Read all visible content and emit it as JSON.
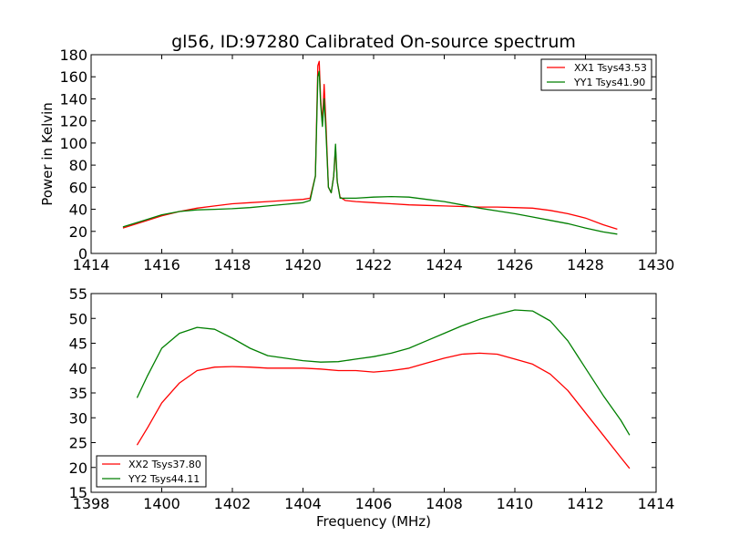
{
  "chart_data": [
    {
      "type": "line",
      "title": "gl56, ID:97280 Calibrated On-source spectrum",
      "xlabel": "",
      "ylabel": "Power in Kelvin",
      "xlim": [
        1414,
        1430
      ],
      "ylim": [
        0,
        180
      ],
      "xticks": [
        "1414",
        "1416",
        "1418",
        "1420",
        "1422",
        "1424",
        "1426",
        "1428",
        "1430"
      ],
      "yticks": [
        "0",
        "20",
        "40",
        "60",
        "80",
        "100",
        "120",
        "140",
        "160",
        "180"
      ],
      "legend_position": "top-right",
      "series": [
        {
          "name": "XX1 Tsys43.53",
          "color": "#ff0000",
          "x": [
            1414.9,
            1415.5,
            1416,
            1416.5,
            1417,
            1417.5,
            1418,
            1418.5,
            1419,
            1419.5,
            1420,
            1420.2,
            1420.35,
            1420.42,
            1420.46,
            1420.5,
            1420.55,
            1420.6,
            1420.65,
            1420.72,
            1420.8,
            1420.87,
            1420.92,
            1420.97,
            1421.05,
            1421.2,
            1421.5,
            1422,
            1422.5,
            1423,
            1423.5,
            1424,
            1424.5,
            1425,
            1425.5,
            1426,
            1426.5,
            1427,
            1427.5,
            1428,
            1428.5,
            1428.9
          ],
          "values": [
            23,
            29,
            34,
            38,
            41,
            43,
            45,
            46,
            47,
            48,
            49,
            50,
            70,
            170,
            174,
            140,
            118,
            153,
            118,
            60,
            55,
            70,
            95,
            65,
            51,
            48,
            47,
            46,
            45,
            44,
            43.5,
            43,
            42.5,
            42,
            42,
            41.5,
            41,
            39,
            36,
            32,
            26,
            22
          ]
        },
        {
          "name": "YY1 Tsys41.90",
          "color": "#007f00",
          "x": [
            1414.9,
            1415.5,
            1416,
            1416.5,
            1417,
            1417.5,
            1418,
            1418.5,
            1419,
            1419.5,
            1420,
            1420.2,
            1420.35,
            1420.42,
            1420.46,
            1420.5,
            1420.55,
            1420.6,
            1420.65,
            1420.72,
            1420.8,
            1420.87,
            1420.92,
            1420.97,
            1421.05,
            1421.2,
            1421.5,
            1422,
            1422.5,
            1423,
            1423.5,
            1424,
            1424.5,
            1425,
            1425.5,
            1426,
            1426.5,
            1427,
            1427.5,
            1428,
            1428.5,
            1428.9
          ],
          "values": [
            24,
            30,
            35,
            38,
            39.5,
            40,
            40.5,
            41.5,
            43,
            44.5,
            46,
            48,
            70,
            160,
            165,
            135,
            115,
            140,
            110,
            60,
            55,
            70,
            99,
            65,
            50,
            50,
            50,
            51,
            51.5,
            51,
            49,
            47,
            44,
            41,
            38.5,
            36,
            33,
            30,
            27,
            23,
            19.5,
            17.5
          ]
        }
      ]
    },
    {
      "type": "line",
      "title": "",
      "xlabel": "Frequency (MHz)",
      "ylabel": "",
      "xlim": [
        1398,
        1414
      ],
      "ylim": [
        15,
        55
      ],
      "xticks": [
        "1398",
        "1400",
        "1402",
        "1404",
        "1406",
        "1408",
        "1410",
        "1412",
        "1414"
      ],
      "yticks": [
        "15",
        "20",
        "25",
        "30",
        "35",
        "40",
        "45",
        "50",
        "55"
      ],
      "legend_position": "bottom-left",
      "series": [
        {
          "name": "XX2 Tsys37.80",
          "color": "#ff0000",
          "x": [
            1399.3,
            1399.6,
            1400,
            1400.5,
            1401,
            1401.5,
            1402,
            1402.5,
            1403,
            1403.5,
            1404,
            1404.5,
            1405,
            1405.5,
            1406,
            1406.5,
            1407,
            1407.5,
            1408,
            1408.5,
            1409,
            1409.5,
            1410,
            1410.5,
            1411,
            1411.5,
            1412,
            1412.5,
            1413,
            1413.25
          ],
          "values": [
            24.5,
            28,
            33,
            37,
            39.5,
            40.2,
            40.3,
            40.2,
            40,
            40,
            40,
            39.8,
            39.5,
            39.5,
            39.2,
            39.5,
            40,
            41,
            42,
            42.8,
            43,
            42.8,
            41.8,
            40.8,
            38.8,
            35.5,
            31,
            26.5,
            22,
            19.8
          ]
        },
        {
          "name": "YY2 Tsys44.11",
          "color": "#007f00",
          "x": [
            1399.3,
            1399.6,
            1400,
            1400.5,
            1401,
            1401.5,
            1402,
            1402.5,
            1403,
            1403.5,
            1404,
            1404.5,
            1405,
            1405.5,
            1406,
            1406.5,
            1407,
            1407.5,
            1408,
            1408.5,
            1409,
            1409.5,
            1410,
            1410.5,
            1411,
            1411.5,
            1412,
            1412.5,
            1413,
            1413.25
          ],
          "values": [
            34,
            38.5,
            44,
            47,
            48.2,
            47.8,
            46,
            44,
            42.5,
            42,
            41.5,
            41.2,
            41.3,
            41.8,
            42.3,
            43,
            44,
            45.5,
            47,
            48.5,
            49.8,
            50.8,
            51.7,
            51.5,
            49.5,
            45.5,
            40,
            34.5,
            29.5,
            26.5
          ]
        }
      ]
    }
  ]
}
